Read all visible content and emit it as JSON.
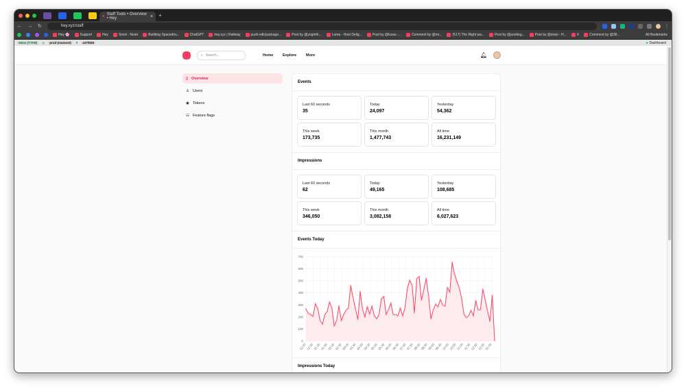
{
  "browser": {
    "tab_title": "Staff Tools • Overview • Hey",
    "url": "hey.xyz/staff",
    "bookmarks": [
      "Hey 🌸",
      "Support",
      "Hey",
      "Snort - Nostr",
      "Building Spacedriv...",
      "ChatGPT",
      "hey.xyz | Railway",
      "push-sdk/package...",
      "Post by @yoginth...",
      "Luma - Host Delig...",
      "Post by @luxas -...",
      "Comment by @mr...",
      "(517) The Right wa...",
      "Post by @pooltog...",
      "Post by @stani - H...",
      "X",
      "Comment by @38..."
    ],
    "all_bookmarks": "All Bookmarks"
  },
  "devbar": {
    "ttfb": "35ms (TTFB)",
    "env": "prod (mainnet)",
    "commit": "a37f6b8",
    "dashboard": "Dashboard"
  },
  "header": {
    "search_placeholder": "Search...",
    "nav": [
      "Home",
      "Explore",
      "More"
    ]
  },
  "sidebar": {
    "items": [
      {
        "label": "Overview",
        "icon": "clipboard-icon",
        "active": true
      },
      {
        "label": "Users",
        "icon": "user-icon"
      },
      {
        "label": "Tokens",
        "icon": "coin-icon"
      },
      {
        "label": "Feature flags",
        "icon": "sliders-icon"
      }
    ]
  },
  "events": {
    "title": "Events",
    "stats": [
      {
        "label": "Last 60 seconds",
        "value": "35"
      },
      {
        "label": "Today",
        "value": "24,097"
      },
      {
        "label": "Yesterday",
        "value": "54,362"
      },
      {
        "label": "This week",
        "value": "173,735"
      },
      {
        "label": "This month",
        "value": "1,477,743"
      },
      {
        "label": "All time",
        "value": "16,231,149"
      }
    ]
  },
  "impressions": {
    "title": "Impressions",
    "stats": [
      {
        "label": "Last 60 seconds",
        "value": "62"
      },
      {
        "label": "Today",
        "value": "49,165"
      },
      {
        "label": "Yesterday",
        "value": "108,685"
      },
      {
        "label": "This week",
        "value": "346,050"
      },
      {
        "label": "This month",
        "value": "3,082,158"
      },
      {
        "label": "All time",
        "value": "6,027,623"
      }
    ]
  },
  "events_today_title": "Events Today",
  "impressions_today_title": "Impressions Today",
  "chart_data": {
    "type": "area",
    "color": "#f43f5e",
    "fill": "#fdecee",
    "ylim": [
      0,
      700
    ],
    "yticks": [
      0,
      100,
      200,
      300,
      400,
      500,
      600,
      700
    ],
    "xticks": [
      "12:00",
      "12:30",
      "01:00",
      "01:30",
      "02:00",
      "02:30",
      "03:00",
      "03:30",
      "04:00",
      "04:30",
      "05:00",
      "05:30",
      "06:00",
      "06:30",
      "07:00",
      "07:30",
      "08:00",
      "08:30",
      "09:00",
      "09:30",
      "10:00",
      "10:30",
      "11:00",
      "11:30",
      "12:00",
      "12:30",
      "01:00"
    ],
    "grid": true,
    "values": [
      265,
      230,
      220,
      205,
      310,
      270,
      170,
      140,
      220,
      245,
      325,
      275,
      125,
      170,
      290,
      170,
      220,
      255,
      275,
      460,
      360,
      265,
      180,
      410,
      265,
      200,
      285,
      225,
      290,
      210,
      185,
      220,
      350,
      370,
      220,
      260,
      315,
      220,
      220,
      210,
      275,
      210,
      275,
      440,
      505,
      465,
      235,
      520,
      535,
      340,
      430,
      520,
      375,
      185,
      260,
      305,
      285,
      345,
      300,
      290,
      445,
      405,
      655,
      555,
      495,
      445,
      355,
      225,
      195,
      210,
      255,
      210,
      335,
      260,
      260,
      430,
      345,
      250,
      165,
      380,
      5
    ]
  }
}
